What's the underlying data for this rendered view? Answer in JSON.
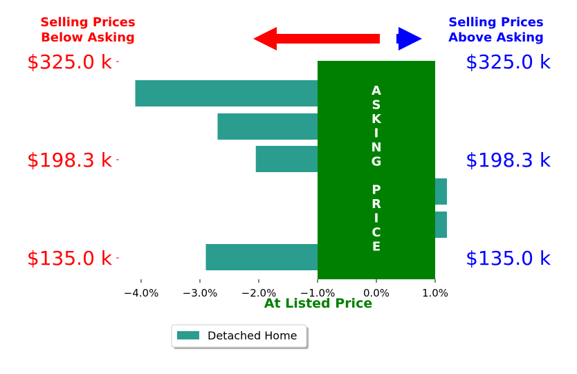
{
  "colors": {
    "bar": "#2a9d8f",
    "band": "#008000",
    "below": "#ff0000",
    "above": "#0000ff",
    "axis_label": "#008000"
  },
  "headers": {
    "below_line1": "Selling Prices",
    "below_line2": "Below Asking",
    "above_line1": "Selling Prices",
    "above_line2": "Above Asking"
  },
  "price_labels": {
    "left": [
      "$325.0 k",
      "$198.3 k",
      "$135.0 k"
    ],
    "right": [
      "$325.0 k",
      "$198.3 k",
      "$135.0 k"
    ]
  },
  "band_text": {
    "letters": [
      "A",
      "S",
      "K",
      "I",
      "N",
      "G",
      "",
      "P",
      "R",
      "I",
      "C",
      "E"
    ]
  },
  "chart_data": {
    "type": "bar",
    "orientation": "horizontal",
    "series": [
      {
        "name": "Detached Home",
        "values": [
          -4.1,
          -2.7,
          -2.05,
          1.2,
          1.2,
          -2.9
        ]
      }
    ],
    "band": {
      "from": -1.0,
      "to": 1.0,
      "label": "ASKING PRICE"
    },
    "xlim": [
      -4.4,
      1.1
    ],
    "xticks": [
      -4.0,
      -3.0,
      -2.0,
      -1.0,
      0.0,
      1.0
    ],
    "xtick_labels": [
      "−4.0%",
      "−3.0%",
      "−2.0%",
      "−1.0%",
      "0.0%",
      "1.0%"
    ],
    "xlabel": "At Listed Price",
    "legend": {
      "placement": "bottom-center",
      "entries": [
        "Detached Home"
      ]
    }
  }
}
